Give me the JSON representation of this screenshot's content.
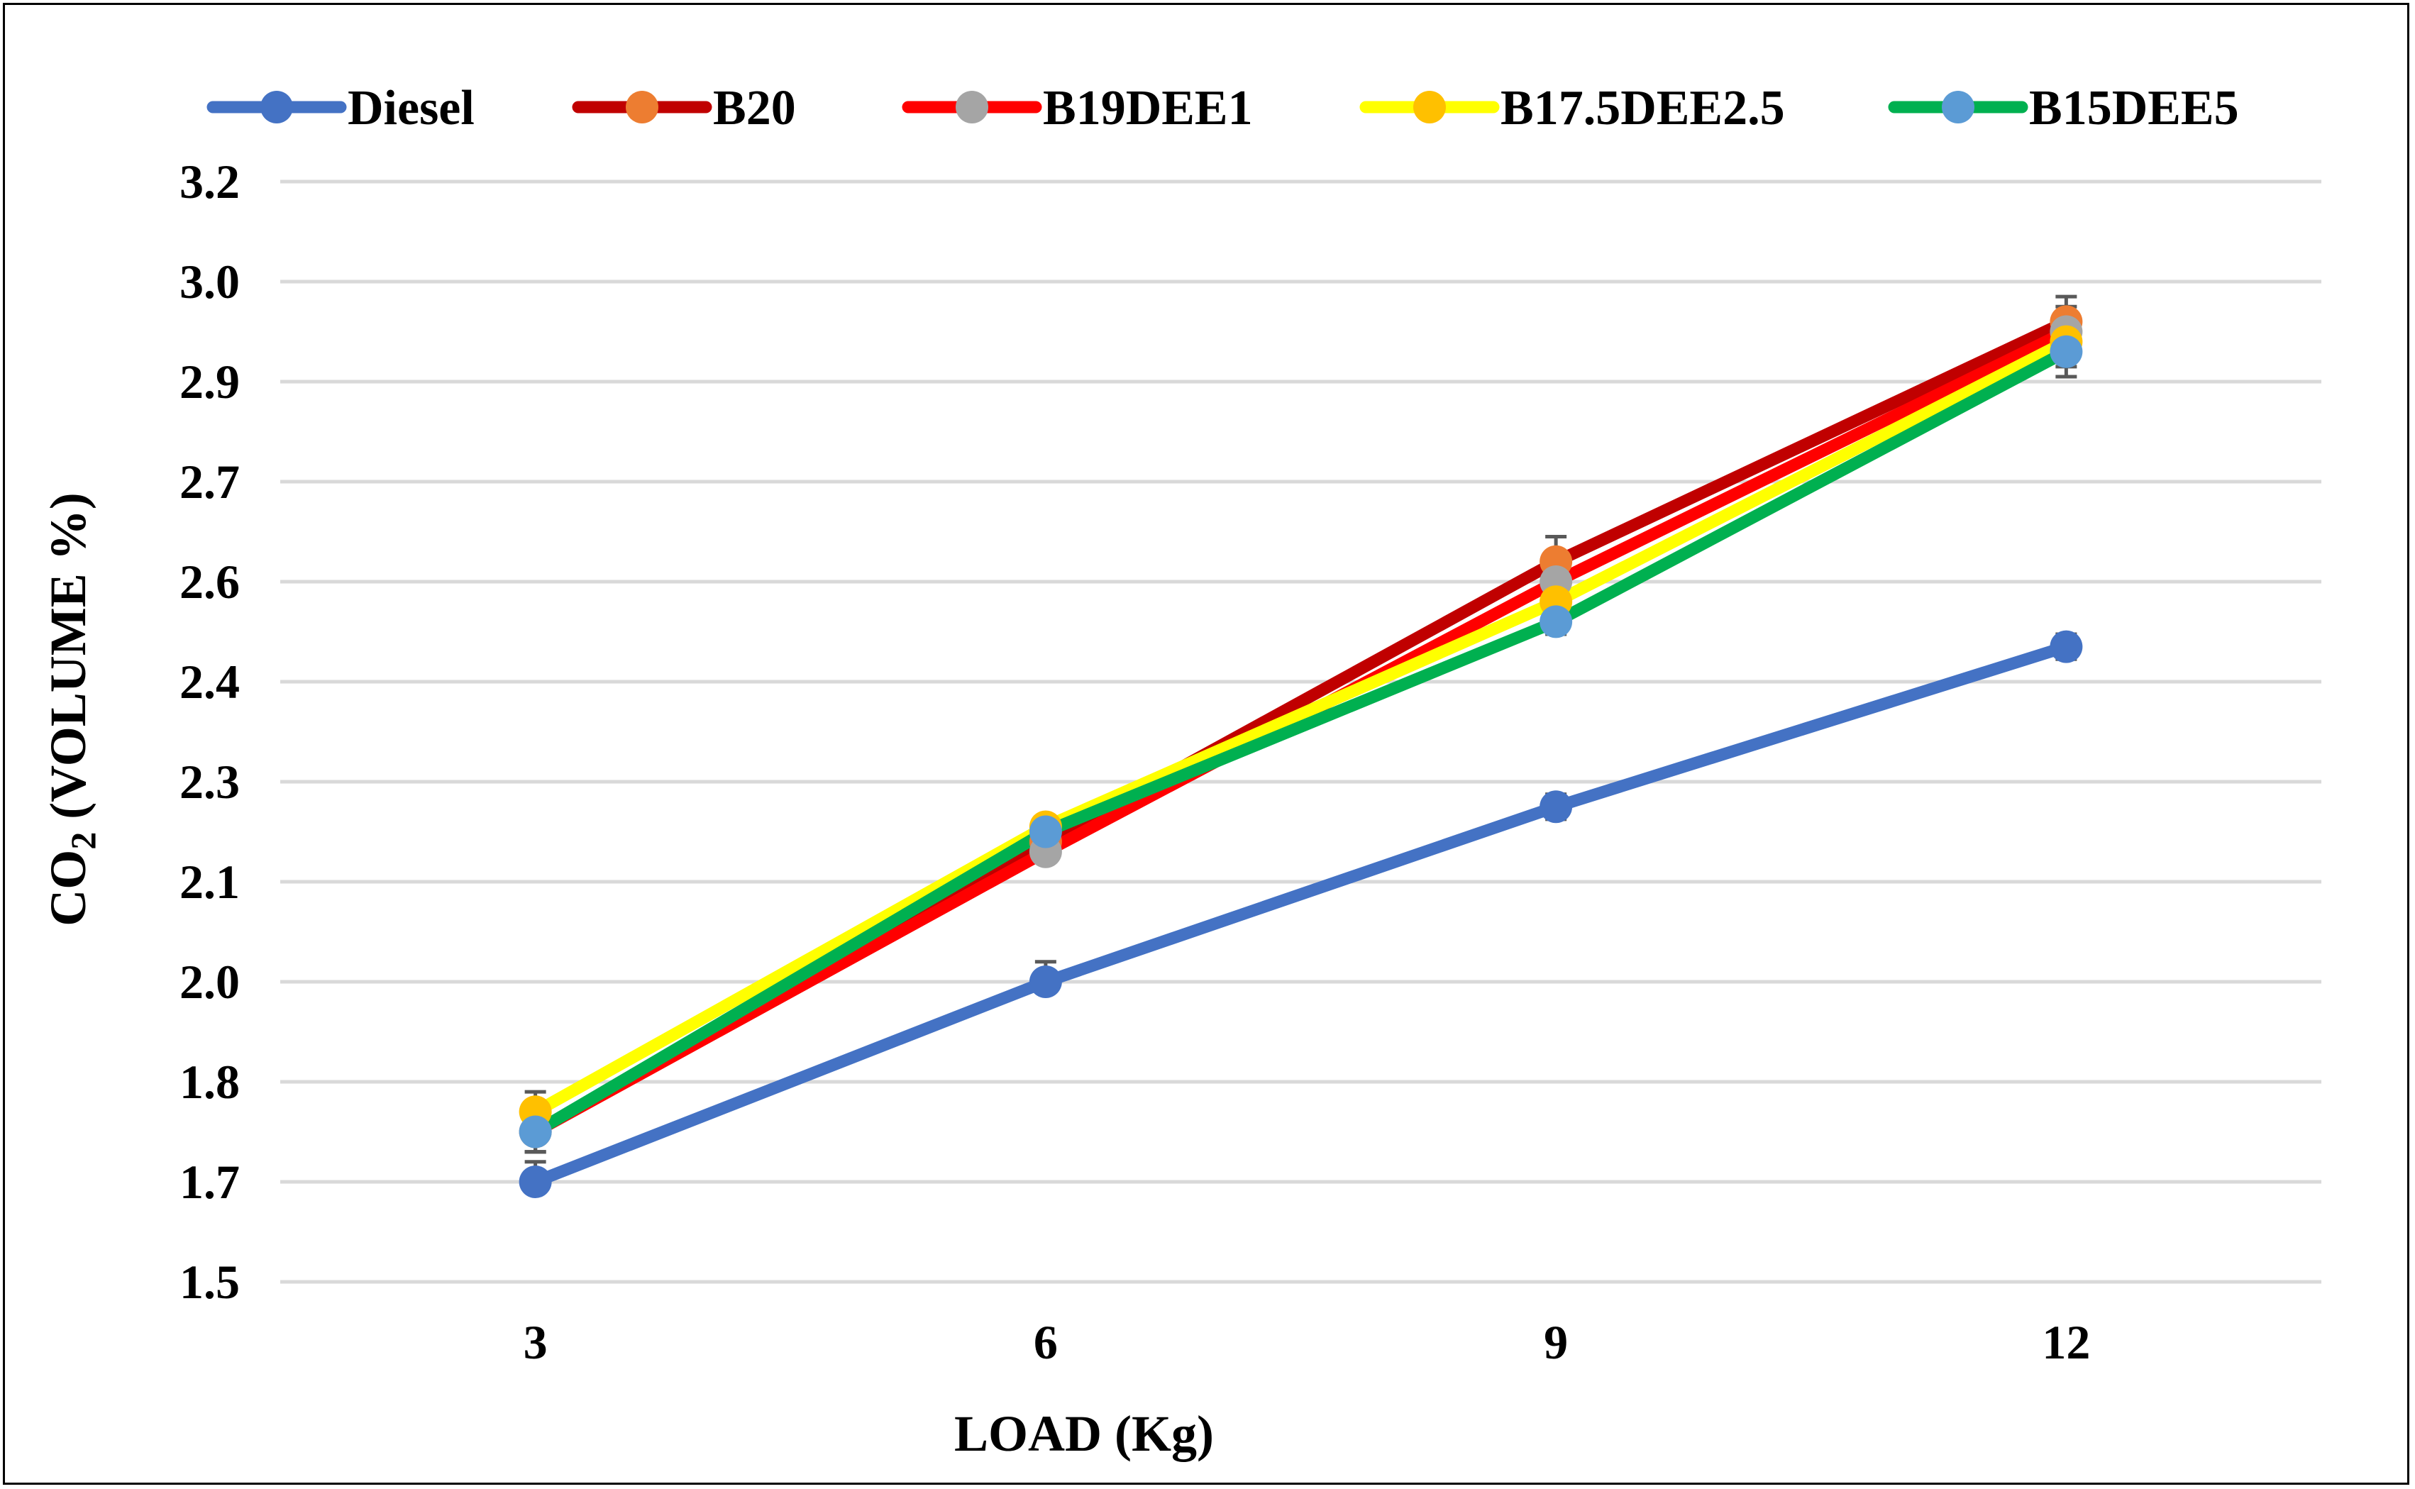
{
  "chart_data": {
    "type": "line",
    "title": "",
    "xlabel": "LOAD (Kg)",
    "ylabel_main": "CO",
    "ylabel_sub": "2",
    "ylabel_rest": " (VOLUME %)",
    "categories": [
      "3",
      "6",
      "9",
      "12"
    ],
    "x": [
      3,
      6,
      9,
      12
    ],
    "ylim": [
      1.5,
      3.2
    ],
    "y_ticks": [
      1.5,
      1.7,
      1.8,
      2.0,
      2.1,
      2.3,
      2.4,
      2.6,
      2.7,
      2.9,
      3.0,
      3.2
    ],
    "y_tick_labels": [
      "1.5",
      "1.7",
      "1.8",
      "2.0",
      "2.1",
      "2.3",
      "2.4",
      "2.6",
      "2.7",
      "2.9",
      "3.0",
      "3.2"
    ],
    "grid": true,
    "legend_position": "top",
    "error_bars": true,
    "series": [
      {
        "name": "Diesel",
        "line_color": "#4472C4",
        "marker_color": "#4472C4",
        "values": [
          1.7,
          2.0,
          2.25,
          2.47
        ],
        "error": [
          0.02,
          0.02,
          0.025,
          0.025
        ]
      },
      {
        "name": "B20",
        "line_color": "#C00000",
        "marker_color": "#ED7D31",
        "values": [
          1.75,
          2.18,
          2.62,
          2.96
        ],
        "error": [
          0.02,
          0.02,
          0.025,
          0.025
        ]
      },
      {
        "name": "B19DEE1",
        "line_color": "#FF0000",
        "marker_color": "#A5A5A5",
        "values": [
          1.75,
          2.16,
          2.6,
          2.95
        ],
        "error": [
          0.02,
          0.02,
          0.025,
          0.025
        ]
      },
      {
        "name": "B17.5DEE2.5",
        "line_color": "#FFFF00",
        "marker_color": "#FFC000",
        "values": [
          1.77,
          2.21,
          2.56,
          2.94
        ],
        "error": [
          0.02,
          0.02,
          0.025,
          0.025
        ]
      },
      {
        "name": "B15DEE5",
        "line_color": "#00B050",
        "marker_color": "#5B9BD5",
        "values": [
          1.75,
          2.2,
          2.52,
          2.93
        ],
        "error": [
          0.02,
          0.02,
          0.025,
          0.025
        ]
      }
    ]
  }
}
